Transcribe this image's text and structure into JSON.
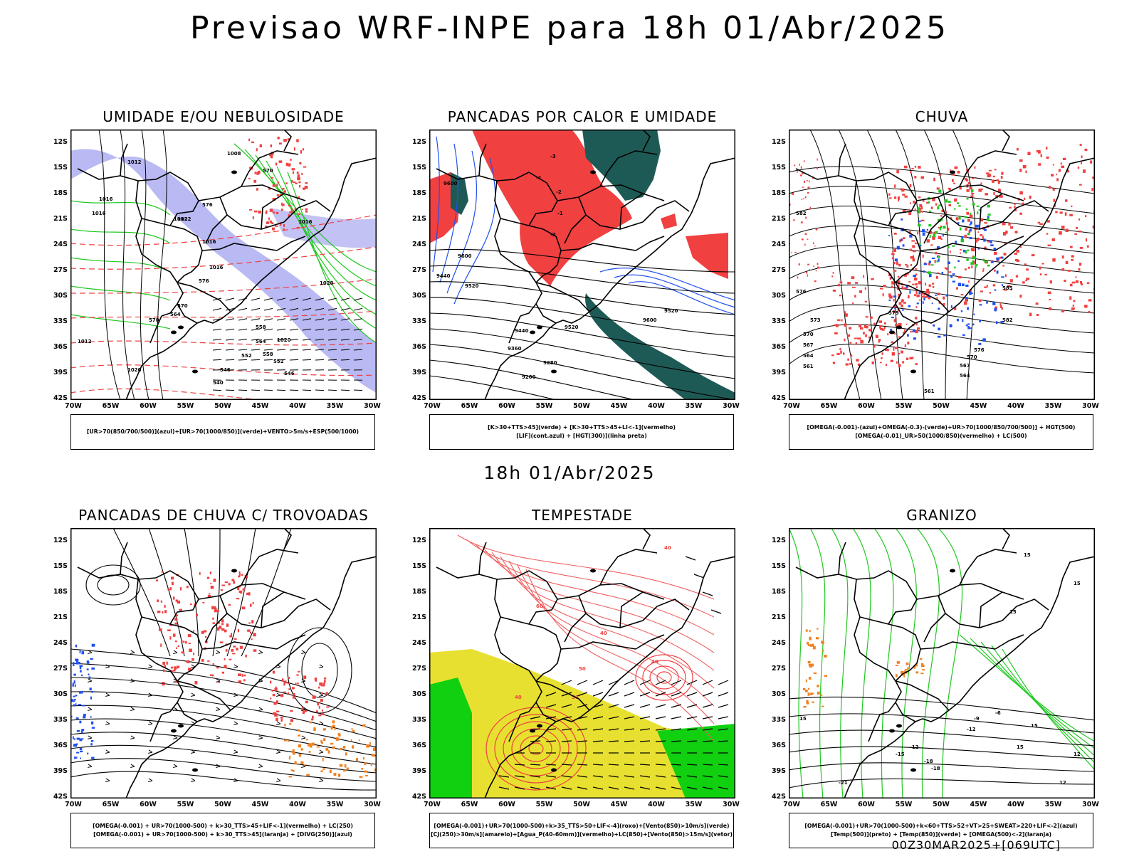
{
  "title": "Previsao WRF-INPE  para 18h 01/Abr/2025",
  "mid_date": "18h 01/Abr/2025",
  "run_label": "00Z30MAR2025+[069UTC]",
  "lat_ticks": [
    "12S",
    "15S",
    "18S",
    "21S",
    "24S",
    "27S",
    "30S",
    "33S",
    "36S",
    "39S",
    "42S"
  ],
  "lon_ticks": [
    "70W",
    "65W",
    "60W",
    "55W",
    "50W",
    "45W",
    "40W",
    "35W",
    "30W"
  ],
  "colors": {
    "red": "#f04040",
    "green": "#20c820",
    "blue": "#2050f0",
    "lavender": "#a8a8f0",
    "dark_green": "#1e5a55",
    "yellow": "#e8e030",
    "bright_green": "#10d010",
    "orange": "#f08020",
    "salmon": "#f06060"
  },
  "panels": [
    {
      "id": "umidade",
      "title": "UMIDADE E/OU NEBULOSIDADE",
      "legend": [
        "[UR>70(850/700/500)](azul)+[UR>70(1000/850)](verde)+VENTO>5m/s+ESP(500/1000)"
      ],
      "contour_labels": [
        "1012",
        "1008",
        "1016",
        "1016",
        "1012",
        "1012",
        "1016",
        "1016",
        "1020",
        "1016",
        "1020",
        "1012",
        "1020",
        "570",
        "576",
        "576",
        "570",
        "564",
        "558",
        "552",
        "546",
        "540",
        "546",
        "552",
        "558",
        "564",
        "570"
      ]
    },
    {
      "id": "pancadas-calor",
      "title": "PANCADAS POR CALOR E UMIDADE",
      "legend": [
        "[K>30+TTS>45](verde)  +  [K>30+TTS>45+LI<-1](vermelho)",
        "[LIF](cont.azul)  +  [HGT(300)](linha preta)"
      ],
      "contour_labels": [
        "9600",
        "9600",
        "9520",
        "9440",
        "9360",
        "9280",
        "9200",
        "9440",
        "9520",
        "9600",
        "9520",
        "-3",
        "-2",
        "-1",
        "-2",
        "-1"
      ]
    },
    {
      "id": "chuva",
      "title": "CHUVA",
      "legend": [
        "[OMEGA(-0.001)-(azul)+OMEGA(-0.3)-(verde)+UR>70(1000/850/700/500)]  +  HGT(500)",
        "[OMEGA(-0.01)_UR>50(1000/850)(vermelho)  +  LC(500)"
      ],
      "contour_labels": [
        "582",
        "576",
        "573",
        "570",
        "567",
        "564",
        "561",
        "585",
        "582",
        "576",
        "570",
        "567",
        "564",
        "561",
        "579"
      ]
    },
    {
      "id": "pancadas-trovoadas",
      "title": "PANCADAS DE CHUVA C/ TROVOADAS",
      "legend": [
        "[OMEGA(-0.001)  +  UR>70(1000-500)  +  k>30_TTS>45+LIF<-1](vermelho)  +  LC(250)",
        "[OMEGA(-0.001)  +  UR>70(1000-500)  +  k>30_TTS>45](laranja)  +  [DIVG(250)](azul)"
      ],
      "contour_labels": []
    },
    {
      "id": "tempestade",
      "title": "TEMPESTADE",
      "legend": [
        "[OMEGA(-0.001)+UR>70(1000-500)+k>35_TTS>50+LIF<-4](roxo)+[Vento(850)>10m/s](verde)",
        "[CJ(250)>30m/s](amarelo)+[Agua_P(40-60mm)](vermelho)+LC(850)+[Vento(850)>15m/s](vetor)"
      ],
      "contour_labels": [
        "40",
        "40",
        "40",
        "50",
        "50",
        "60",
        "40"
      ]
    },
    {
      "id": "granizo",
      "title": "GRANIZO",
      "legend": [
        "[OMEGA(-0.001)+UR>70(1000-500)+k<60+TTS>52+VT>25+SWEAT>220+LIF<-2](azul)",
        "[Temp(500)](preto)  +  [Temp(850)](verde)  +  [OMEGA(500)<-2](laranja)"
      ],
      "contour_labels": [
        "15",
        "15",
        "15",
        "15",
        "15",
        "12",
        "-15",
        "-12",
        "-18",
        "-21",
        "-12",
        "-9",
        "-6",
        "-18",
        "12",
        "15"
      ]
    }
  ]
}
